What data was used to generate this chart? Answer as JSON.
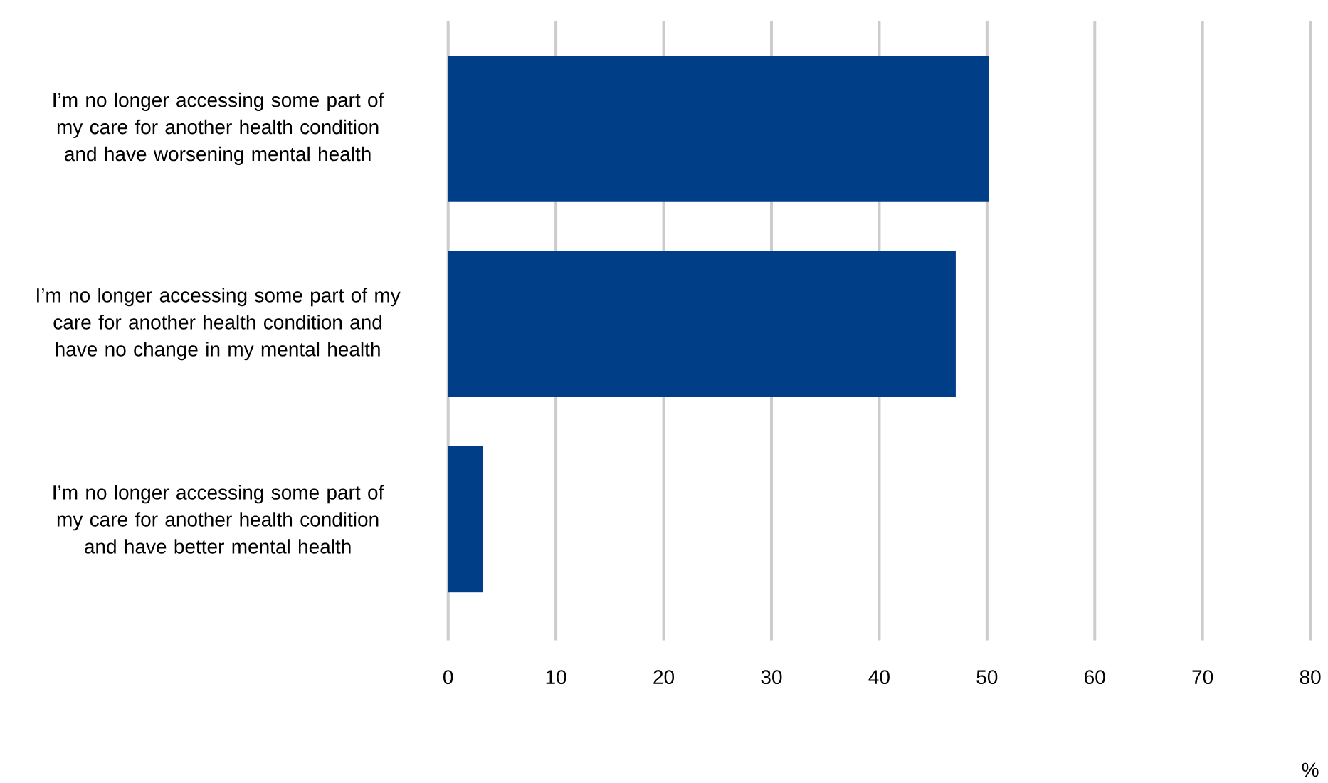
{
  "chart_data": {
    "type": "bar",
    "orientation": "horizontal",
    "xlabel": "%",
    "categories": [
      "I’m no longer accessing some part of my care for another health condition and have worsening mental health",
      "I’m no longer accessing some part of my care for another health condition and have no change in my mental health",
      "I’m no longer accessing some part of my care for another health condition and have better mental health"
    ],
    "values": [
      50.2,
      47.1,
      3.2
    ],
    "color": "#003f87",
    "xlim": [
      0,
      80
    ],
    "xticks": [
      0,
      10,
      20,
      30,
      40,
      50,
      60,
      70,
      80
    ],
    "grid": "x"
  }
}
